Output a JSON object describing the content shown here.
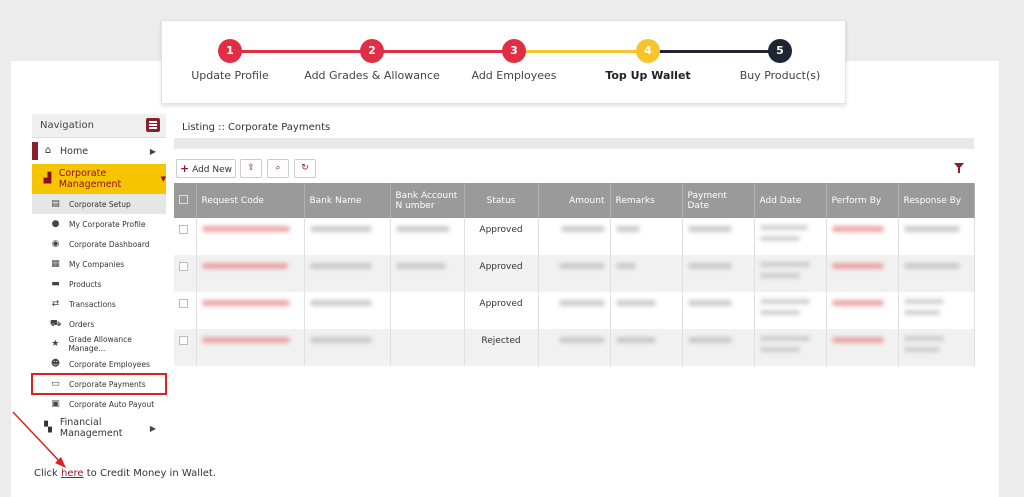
{
  "stepper": {
    "steps": [
      {
        "number": "1",
        "label": "Update Profile",
        "color": "#e02f44"
      },
      {
        "number": "2",
        "label": "Add Grades & Allowance",
        "color": "#e02f44"
      },
      {
        "number": "3",
        "label": "Add Employees",
        "color": "#e02f44"
      },
      {
        "number": "4",
        "label": "Top Up Wallet",
        "color": "#f7c52b",
        "active": true
      },
      {
        "number": "5",
        "label": "Buy Product(s)",
        "color": "#1f2533"
      }
    ]
  },
  "sidebar": {
    "header": "Navigation",
    "home": "Home",
    "corporate_management": "Corporate Management",
    "sub_items": [
      {
        "label": "Corporate Setup",
        "icon": "setup-icon"
      },
      {
        "label": "My Corporate Profile",
        "icon": "user-icon"
      },
      {
        "label": "Corporate Dashboard",
        "icon": "dashboard-icon"
      },
      {
        "label": "My Companies",
        "icon": "building-icon"
      },
      {
        "label": "Products",
        "icon": "products-icon"
      },
      {
        "label": "Transactions",
        "icon": "transfer-icon"
      },
      {
        "label": "Orders",
        "icon": "cart-icon"
      },
      {
        "label": "Grade Allowance Manage...",
        "icon": "star-icon"
      },
      {
        "label": "Corporate Employees",
        "icon": "users-icon"
      },
      {
        "label": "Corporate Payments",
        "icon": "card-icon"
      },
      {
        "label": "Corporate Auto Payout",
        "icon": "cash-icon"
      }
    ],
    "financial_management": "Financial Management"
  },
  "listing": {
    "title": "Listing :: Corporate Payments",
    "add_new": "Add New"
  },
  "table": {
    "columns": [
      "Request Code",
      "Bank Name",
      "Bank Account N umber",
      "Status",
      "Amount",
      "Remarks",
      "Payment Date",
      "Add Date",
      "Perform By",
      "Response By"
    ],
    "statuses": [
      "Approved",
      "Approved",
      "Approved",
      "Rejected"
    ]
  },
  "footer": {
    "prefix": "Click ",
    "link": "here",
    "suffix": " to Credit Money in Wallet."
  },
  "colors": {
    "brand": "#8c1f2c",
    "accent_yellow": "#f7c400",
    "highlight_red": "#e02020"
  }
}
